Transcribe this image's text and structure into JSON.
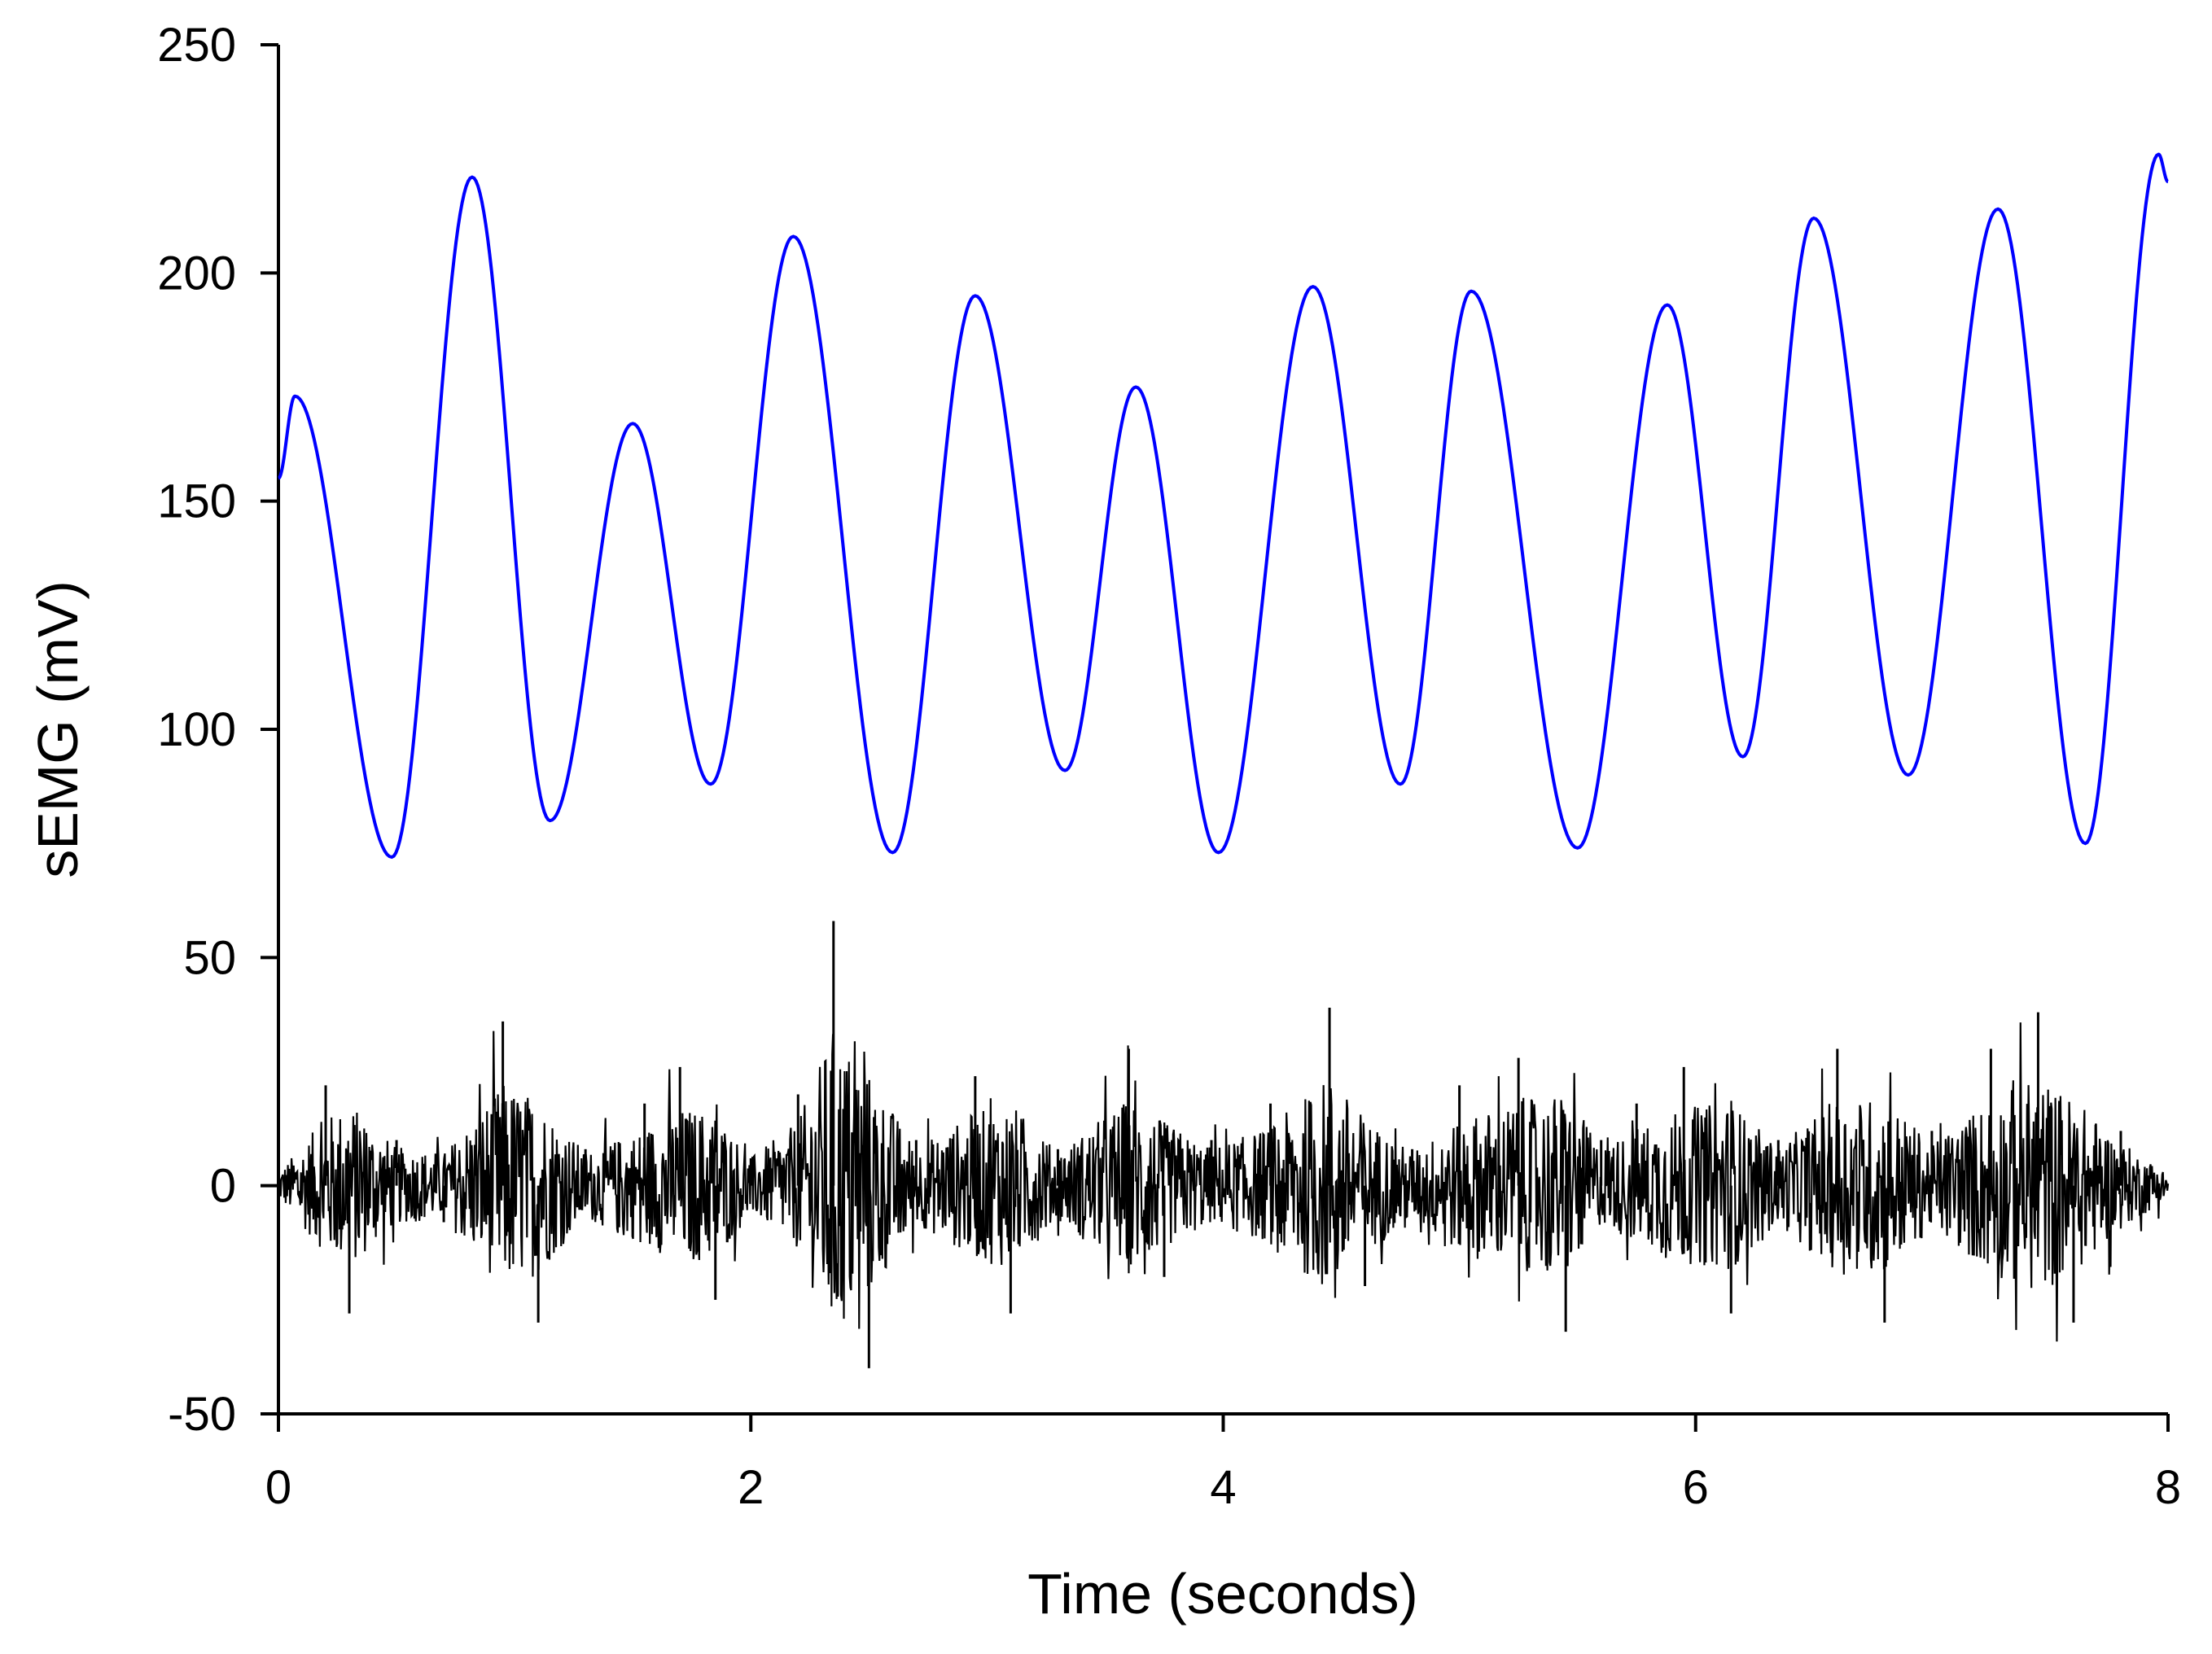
{
  "chart_data": {
    "type": "line",
    "title": "",
    "xlabel": "Time (seconds)",
    "ylabel": "sEMG (mV)",
    "xlim": [
      0,
      8
    ],
    "ylim": [
      -50,
      250
    ],
    "x_ticks": [
      0,
      2,
      4,
      6,
      8
    ],
    "y_ticks": [
      -50,
      0,
      50,
      100,
      150,
      200,
      250
    ],
    "x_tick_labels": [
      "0",
      "2",
      "4",
      "6",
      "8"
    ],
    "y_tick_labels": [
      "-50",
      "0",
      "50",
      "100",
      "150",
      "200",
      "250"
    ],
    "grid": false,
    "legend": "none",
    "series": [
      {
        "color": "#0000ff",
        "style": "smooth oscillation",
        "x": [
          0,
          0.07,
          0.48,
          0.82,
          1.15,
          1.5,
          1.83,
          2.18,
          2.6,
          2.95,
          3.33,
          3.63,
          3.98,
          4.38,
          4.75,
          5.05,
          5.5,
          5.88,
          6.2,
          6.5,
          6.9,
          7.28,
          7.65,
          7.96,
          8.0
        ],
        "y": [
          155,
          173,
          72,
          221,
          80,
          167,
          88,
          208,
          73,
          195,
          91,
          175,
          73,
          197,
          88,
          196,
          74,
          193,
          94,
          212,
          90,
          214,
          75,
          226,
          220
        ]
      },
      {
        "color": "#000000",
        "style": "noisy raw signal with bursts",
        "x": [
          0.0,
          0.2,
          0.3,
          0.5,
          0.7,
          0.95,
          1.1,
          1.3,
          1.55,
          1.7,
          1.85,
          2.0,
          2.2,
          2.35,
          2.5,
          2.7,
          2.95,
          3.1,
          3.3,
          3.6,
          3.75,
          3.95,
          4.2,
          4.45,
          4.6,
          4.8,
          5.0,
          5.25,
          5.45,
          5.6,
          5.75,
          5.95,
          6.15,
          6.35,
          6.6,
          6.8,
          7.0,
          7.25,
          7.45,
          7.6,
          7.8,
          8.0
        ],
        "y": [
          0,
          22,
          -28,
          10,
          -8,
          36,
          -30,
          8,
          18,
          26,
          -25,
          6,
          20,
          58,
          -40,
          10,
          24,
          -28,
          8,
          30,
          -20,
          10,
          18,
          39,
          -22,
          8,
          22,
          28,
          -32,
          10,
          18,
          26,
          -28,
          10,
          30,
          -30,
          12,
          30,
          38,
          -30,
          12,
          0
        ]
      }
    ]
  }
}
